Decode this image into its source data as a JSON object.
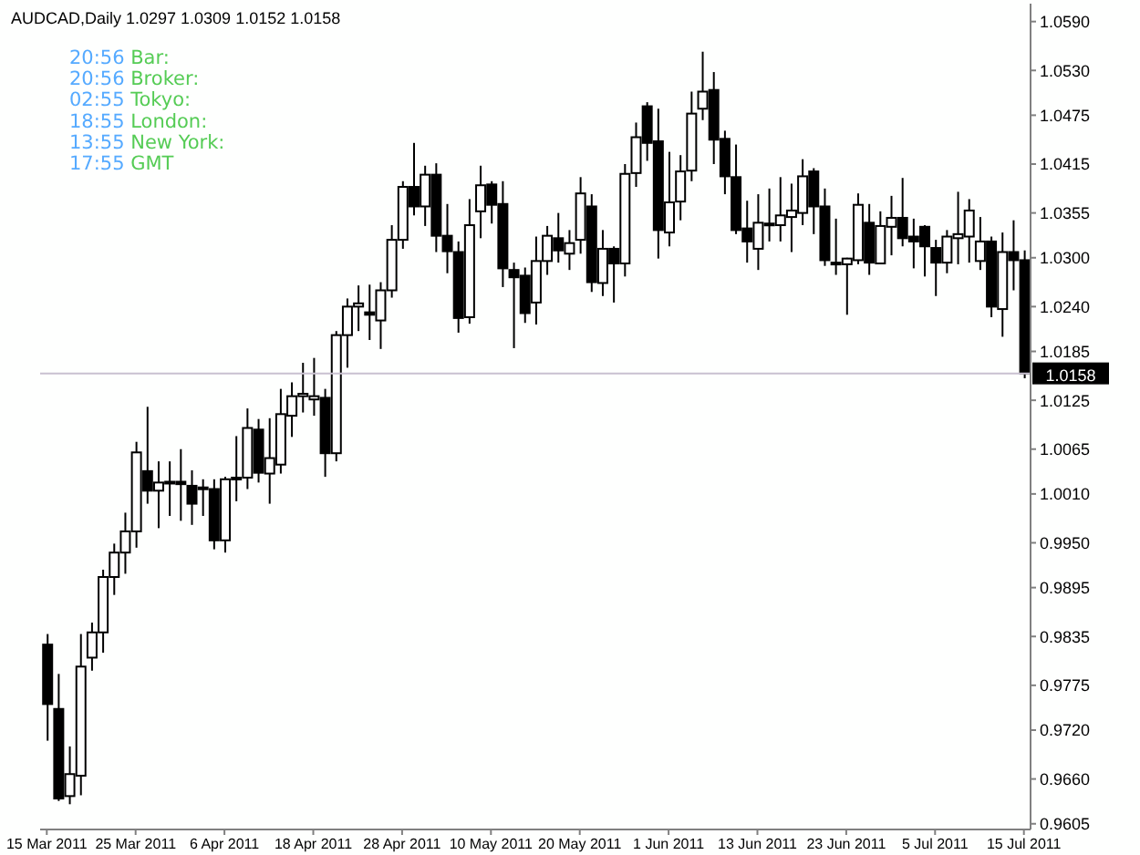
{
  "chart_data": {
    "type": "candlestick",
    "title": "AUDCAD,Daily 1.0297 1.0309 1.0152 1.0158",
    "color": "#000000",
    "annotations": [
      "20:56 Bar:",
      "20:56 Broker:",
      "02:55 Tokyo:",
      "18:55 London:",
      "13:55 New York:",
      "17:55 GMT"
    ],
    "categories": [
      "15 Mar 2011",
      null,
      null,
      null,
      null,
      null,
      null,
      null,
      "25 Mar 2011",
      null,
      null,
      null,
      null,
      null,
      null,
      null,
      "6 Apr 2011",
      null,
      null,
      null,
      null,
      null,
      null,
      null,
      "18 Apr 2011",
      null,
      null,
      null,
      null,
      null,
      null,
      null,
      "28 Apr 2011",
      null,
      null,
      null,
      null,
      null,
      null,
      null,
      "10 May 2011",
      null,
      null,
      null,
      null,
      null,
      null,
      null,
      "20 May 2011",
      null,
      null,
      null,
      null,
      null,
      null,
      null,
      "1 Jun 2011",
      null,
      null,
      null,
      null,
      null,
      null,
      null,
      "13 Jun 2011",
      null,
      null,
      null,
      null,
      null,
      null,
      null,
      "23 Jun 2011",
      null,
      null,
      null,
      null,
      null,
      null,
      null,
      "5 Jul 2011",
      null,
      null,
      null,
      null,
      null,
      null,
      null,
      "15 Jul 2011"
    ],
    "ohlc": [
      [
        0.9825,
        0.9838,
        0.9707,
        0.9752
      ],
      [
        0.9746,
        0.9789,
        0.9633,
        0.9636
      ],
      [
        0.9639,
        0.97,
        0.9629,
        0.9666
      ],
      [
        0.9664,
        0.9838,
        0.964,
        0.9798
      ],
      [
        0.9809,
        0.9852,
        0.9793,
        0.984
      ],
      [
        0.984,
        0.9917,
        0.9815,
        0.9908
      ],
      [
        0.9908,
        0.9949,
        0.9886,
        0.9938
      ],
      [
        0.9938,
        0.9987,
        0.9912,
        0.9964
      ],
      [
        0.9964,
        1.0074,
        0.9944,
        1.0061
      ],
      [
        1.0038,
        1.0117,
        0.9998,
        1.0014
      ],
      [
        1.0014,
        1.005,
        0.9968,
        1.0024
      ],
      [
        1.0024,
        1.005,
        0.9983,
        1.0025
      ],
      [
        1.0025,
        1.0065,
        0.9977,
        1.0022
      ],
      [
        1.002,
        1.0039,
        0.9972,
        0.9998
      ],
      [
        1.0018,
        1.0028,
        0.9983,
        1.0016
      ],
      [
        1.0016,
        1.0028,
        0.9942,
        0.9953
      ],
      [
        0.9953,
        1.0031,
        0.9938,
        1.0028
      ],
      [
        1.0028,
        1.0081,
        1.0001,
        1.003
      ],
      [
        1.003,
        1.0115,
        1.0016,
        1.0091
      ],
      [
        1.0089,
        1.0102,
        1.0024,
        1.0036
      ],
      [
        1.0035,
        1.0103,
        0.9998,
        1.0054
      ],
      [
        1.0046,
        1.0139,
        1.0035,
        1.0108
      ],
      [
        1.0106,
        1.0147,
        1.008,
        1.013
      ],
      [
        1.013,
        1.0171,
        1.011,
        1.0133
      ],
      [
        1.0126,
        1.0177,
        1.0106,
        1.013
      ],
      [
        1.0128,
        1.0139,
        1.0031,
        1.006
      ],
      [
        1.006,
        1.021,
        1.005,
        1.0205
      ],
      [
        1.0205,
        1.025,
        1.0165,
        1.024
      ],
      [
        1.024,
        1.0266,
        1.021,
        1.0244
      ],
      [
        1.0233,
        1.0267,
        1.0199,
        1.023
      ],
      [
        1.0223,
        1.027,
        1.0188,
        1.026
      ],
      [
        1.026,
        1.034,
        1.0251,
        1.0322
      ],
      [
        1.0322,
        1.0394,
        1.0311,
        1.0387
      ],
      [
        1.0387,
        1.0441,
        1.0352,
        1.0363
      ],
      [
        1.0363,
        1.0413,
        1.0339,
        1.0402
      ],
      [
        1.0402,
        1.0416,
        1.0307,
        1.0327
      ],
      [
        1.0327,
        1.0366,
        1.0281,
        1.0308
      ],
      [
        1.0307,
        1.032,
        1.0208,
        1.0226
      ],
      [
        1.0227,
        1.0372,
        1.0219,
        1.034
      ],
      [
        1.0357,
        1.0413,
        1.0324,
        1.0389
      ],
      [
        1.039,
        1.0394,
        1.0342,
        1.0365
      ],
      [
        1.0366,
        1.0394,
        1.0264,
        1.0287
      ],
      [
        1.0285,
        1.0294,
        1.0189,
        1.0276
      ],
      [
        1.0278,
        1.0288,
        1.022,
        1.0232
      ],
      [
        1.0245,
        1.0326,
        1.0218,
        1.0296
      ],
      [
        1.0296,
        1.0339,
        1.0279,
        1.0327
      ],
      [
        1.0324,
        1.0355,
        1.0294,
        1.0309
      ],
      [
        1.0305,
        1.0334,
        1.0285,
        1.0318
      ],
      [
        1.0322,
        1.0399,
        1.0305,
        1.0379
      ],
      [
        1.0363,
        1.0378,
        1.0258,
        1.027
      ],
      [
        1.0269,
        1.0334,
        1.0253,
        1.0311
      ],
      [
        1.0311,
        1.0314,
        1.0245,
        1.0293
      ],
      [
        1.0293,
        1.0415,
        1.0277,
        1.0403
      ],
      [
        1.0404,
        1.0466,
        1.0387,
        1.0448
      ],
      [
        1.0486,
        1.0491,
        1.0419,
        1.0441
      ],
      [
        1.0443,
        1.0483,
        1.0299,
        1.0334
      ],
      [
        1.0331,
        1.043,
        1.0314,
        1.0368
      ],
      [
        1.0369,
        1.0426,
        1.0346,
        1.0406
      ],
      [
        1.0407,
        1.0504,
        1.0394,
        1.0477
      ],
      [
        1.0483,
        1.0553,
        1.0469,
        1.0504
      ],
      [
        1.0506,
        1.0528,
        1.0415,
        1.0445
      ],
      [
        1.0446,
        1.0456,
        1.0378,
        1.04
      ],
      [
        1.0399,
        1.0439,
        1.0329,
        1.0334
      ],
      [
        1.0336,
        1.037,
        1.0294,
        1.032
      ],
      [
        1.0311,
        1.0378,
        1.0285,
        1.0343
      ],
      [
        1.0342,
        1.0385,
        1.032,
        1.0342
      ],
      [
        1.034,
        1.0399,
        1.032,
        1.0352
      ],
      [
        1.035,
        1.0391,
        1.0307,
        1.0358
      ],
      [
        1.0355,
        1.0421,
        1.034,
        1.04
      ],
      [
        1.0406,
        1.041,
        1.0329,
        1.0363
      ],
      [
        1.0363,
        1.0385,
        1.029,
        1.0297
      ],
      [
        1.0294,
        1.0348,
        1.0279,
        1.0293
      ],
      [
        1.0292,
        1.03,
        1.023,
        1.0299
      ],
      [
        1.0297,
        1.0379,
        1.0292,
        1.0365
      ],
      [
        1.0343,
        1.0366,
        1.0279,
        1.0294
      ],
      [
        1.0293,
        1.0357,
        1.0292,
        1.0339
      ],
      [
        1.0338,
        1.0376,
        1.0303,
        1.0349
      ],
      [
        1.0349,
        1.0398,
        1.0314,
        1.0324
      ],
      [
        1.0326,
        1.0348,
        1.0287,
        1.032
      ],
      [
        1.0338,
        1.034,
        1.0277,
        1.0314
      ],
      [
        1.0312,
        1.0322,
        1.0253,
        1.0294
      ],
      [
        1.0294,
        1.0334,
        1.0281,
        1.0326
      ],
      [
        1.0324,
        1.0381,
        1.0292,
        1.0329
      ],
      [
        1.0326,
        1.0372,
        1.0294,
        1.0358
      ],
      [
        1.0296,
        1.035,
        1.0285,
        1.032
      ],
      [
        1.032,
        1.0326,
        1.0227,
        1.024
      ],
      [
        1.0237,
        1.0331,
        1.0203,
        1.0307
      ],
      [
        1.0307,
        1.0346,
        1.026,
        1.0297
      ],
      [
        1.0297,
        1.0309,
        1.0152,
        1.0158
      ]
    ],
    "ylim": [
      0.9598,
      1.0612
    ],
    "yticks": [
      {
        "value": 1.059,
        "label": "1.0590"
      },
      {
        "value": 1.053,
        "label": "1.0530"
      },
      {
        "value": 1.0475,
        "label": "1.0475"
      },
      {
        "value": 1.0415,
        "label": "1.0415"
      },
      {
        "value": 1.0355,
        "label": "1.0355"
      },
      {
        "value": 1.03,
        "label": "1.0300"
      },
      {
        "value": 1.024,
        "label": "1.0240"
      },
      {
        "value": 1.0185,
        "label": "1.0185"
      },
      {
        "value": 1.0125,
        "label": "1.0125"
      },
      {
        "value": 1.0065,
        "label": "1.0065"
      },
      {
        "value": 1.001,
        "label": "1.0010"
      },
      {
        "value": 0.995,
        "label": "0.9950"
      },
      {
        "value": 0.9895,
        "label": "0.9895"
      },
      {
        "value": 0.9835,
        "label": "0.9835"
      },
      {
        "value": 0.9775,
        "label": "0.9775"
      },
      {
        "value": 0.972,
        "label": "0.9720"
      },
      {
        "value": 0.966,
        "label": "0.9660"
      },
      {
        "value": 0.9605,
        "label": "0.9605"
      }
    ],
    "ref_lines": [
      {
        "axis": "y",
        "value": 1.0158,
        "label": "1.0158",
        "color": "#c8c0d0"
      }
    ],
    "grid": false
  }
}
